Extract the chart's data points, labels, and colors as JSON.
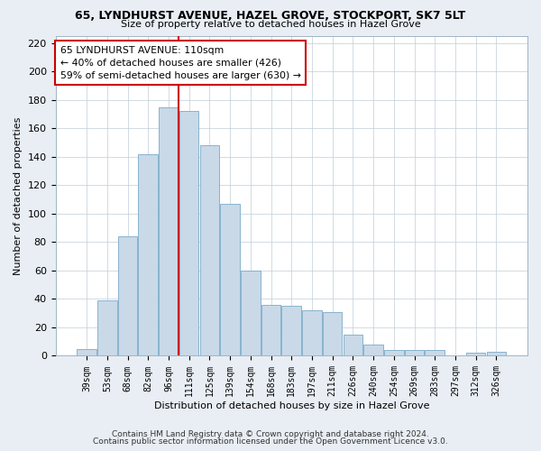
{
  "title_line1": "65, LYNDHURST AVENUE, HAZEL GROVE, STOCKPORT, SK7 5LT",
  "title_line2": "Size of property relative to detached houses in Hazel Grove",
  "xlabel": "Distribution of detached houses by size in Hazel Grove",
  "ylabel": "Number of detached properties",
  "categories": [
    "39sqm",
    "53sqm",
    "68sqm",
    "82sqm",
    "96sqm",
    "111sqm",
    "125sqm",
    "139sqm",
    "154sqm",
    "168sqm",
    "183sqm",
    "197sqm",
    "211sqm",
    "226sqm",
    "240sqm",
    "254sqm",
    "269sqm",
    "283sqm",
    "297sqm",
    "312sqm",
    "326sqm"
  ],
  "values": [
    5,
    39,
    84,
    142,
    175,
    172,
    148,
    107,
    60,
    36,
    35,
    32,
    31,
    15,
    8,
    4,
    4,
    4,
    0,
    2,
    3
  ],
  "bar_color": "#c9d9e8",
  "bar_edge_color": "#7aaac8",
  "vline_index": 4.5,
  "vline_color": "#cc0000",
  "annotation_text": "65 LYNDHURST AVENUE: 110sqm\n← 40% of detached houses are smaller (426)\n59% of semi-detached houses are larger (630) →",
  "annotation_box_color": "#ffffff",
  "annotation_box_edge": "#cc0000",
  "ylim": [
    0,
    225
  ],
  "yticks": [
    0,
    20,
    40,
    60,
    80,
    100,
    120,
    140,
    160,
    180,
    200,
    220
  ],
  "footer_line1": "Contains HM Land Registry data © Crown copyright and database right 2024.",
  "footer_line2": "Contains public sector information licensed under the Open Government Licence v3.0.",
  "background_color": "#e8eef4",
  "plot_background": "#ffffff",
  "grid_color": "#c0cdd8"
}
